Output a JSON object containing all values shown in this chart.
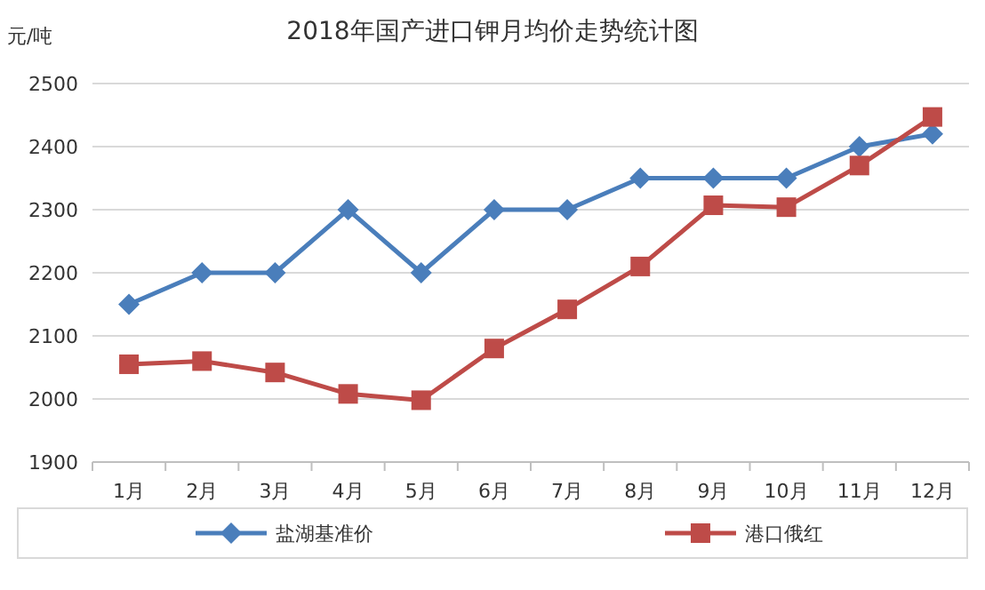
{
  "chart_data": {
    "type": "line",
    "title": "2018年国产进口钾月均价走势统计图",
    "ylabel": "元/吨",
    "categories": [
      "1月",
      "2月",
      "3月",
      "4月",
      "5月",
      "6月",
      "7月",
      "8月",
      "9月",
      "10月",
      "11月",
      "12月"
    ],
    "series": [
      {
        "name": "盐湖基准价",
        "color": "#4a7ebb",
        "marker": "diamond",
        "values": [
          2150,
          2200,
          2200,
          2300,
          2200,
          2300,
          2300,
          2350,
          2350,
          2350,
          2400,
          2420
        ]
      },
      {
        "name": "港口俄红",
        "color": "#be4b48",
        "marker": "square",
        "values": [
          2055,
          2060,
          2042,
          2008,
          1998,
          2080,
          2142,
          2210,
          2307,
          2304,
          2370,
          2447
        ]
      }
    ],
    "ylim": [
      1900,
      2500
    ],
    "yticks": [
      1900,
      2000,
      2100,
      2200,
      2300,
      2400,
      2500
    ],
    "grid": "y",
    "legend": "bottom",
    "line_style": "solid"
  }
}
